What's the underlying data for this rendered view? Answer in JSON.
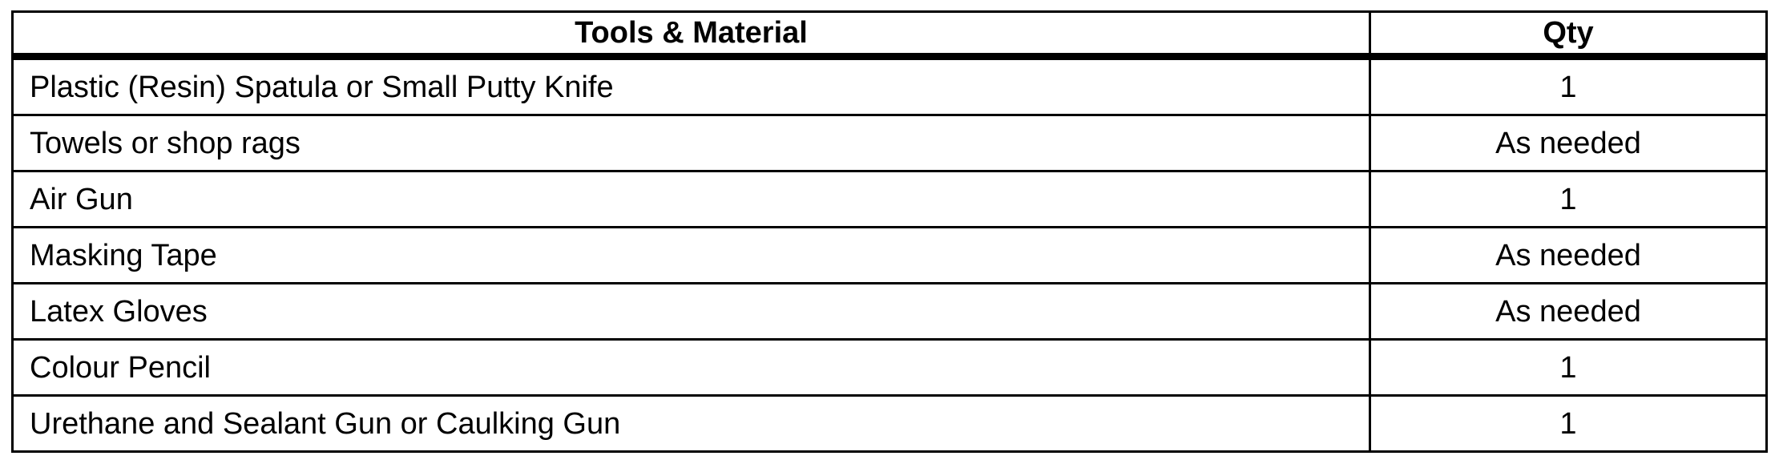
{
  "table": {
    "headers": [
      "Tools & Material",
      "Qty"
    ],
    "rows": [
      {
        "item": "Plastic (Resin) Spatula or Small Putty Knife",
        "qty": "1"
      },
      {
        "item": "Towels or shop rags",
        "qty": "As needed"
      },
      {
        "item": "Air Gun",
        "qty": "1"
      },
      {
        "item": "Masking Tape",
        "qty": "As needed"
      },
      {
        "item": "Latex Gloves",
        "qty": "As needed"
      },
      {
        "item": "Colour Pencil",
        "qty": "1"
      },
      {
        "item": "Urethane and Sealant Gun or Caulking Gun",
        "qty": "1"
      }
    ]
  }
}
